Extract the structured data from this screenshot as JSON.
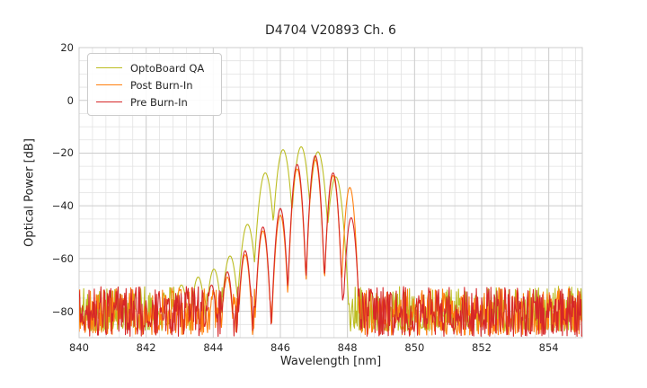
{
  "chart_data": {
    "type": "line",
    "title": "D4704 V20893 Ch. 6",
    "xlabel": "Wavelength [nm]",
    "ylabel": "Optical Power [dB]",
    "xlim": [
      840,
      855
    ],
    "ylim": [
      -90,
      20
    ],
    "x_major_ticks": [
      840,
      842,
      844,
      846,
      848,
      850,
      852,
      854
    ],
    "y_major_ticks": [
      20,
      0,
      -20,
      -40,
      -60,
      -80
    ],
    "x_minor_step_nm": 0.4,
    "y_minor_step_db": 5,
    "grid": {
      "enabled": true,
      "major_color": "#cccccc",
      "minor_color": "#e2e2e2",
      "spine_color": "#cccccc"
    },
    "legend": {
      "position": "upper left"
    },
    "series": [
      {
        "name": "OptoBoard QA",
        "color": "#bcbd22",
        "peak_sharpness_db_per_nm2": 330,
        "mode_peaks_nm_db": [
          [
            843.05,
            -70
          ],
          [
            843.55,
            -67
          ],
          [
            844.02,
            -64
          ],
          [
            844.5,
            -59
          ],
          [
            845.02,
            -47
          ],
          [
            845.55,
            -27.5
          ],
          [
            846.08,
            -18.7
          ],
          [
            846.62,
            -17.6
          ],
          [
            847.12,
            -19.5
          ],
          [
            847.65,
            -29
          ]
        ],
        "noise_floor_db": {
          "min": -87.5,
          "max": -70.5
        },
        "noise_skew": 1.5,
        "seed": 101
      },
      {
        "name": "Post Burn-In",
        "color": "#ff7f0e",
        "peak_sharpness_db_per_nm2": 620,
        "mode_peaks_nm_db": [
          [
            844.42,
            -67
          ],
          [
            844.95,
            -58.5
          ],
          [
            845.48,
            -49.5
          ],
          [
            846.0,
            -43.5
          ],
          [
            846.5,
            -26
          ],
          [
            847.04,
            -22.5
          ],
          [
            847.57,
            -28.5
          ],
          [
            848.07,
            -33
          ]
        ],
        "noise_floor_db": {
          "min": -89,
          "max": -71
        },
        "noise_skew": 1.3,
        "seed": 202
      },
      {
        "name": "Pre Burn-In",
        "color": "#d62728",
        "peak_sharpness_db_per_nm2": 620,
        "mode_peaks_nm_db": [
          [
            843.95,
            -70
          ],
          [
            844.42,
            -65
          ],
          [
            844.95,
            -57
          ],
          [
            845.48,
            -48
          ],
          [
            846.0,
            -41
          ],
          [
            846.5,
            -24.3
          ],
          [
            847.04,
            -21
          ],
          [
            847.57,
            -27.5
          ],
          [
            848.11,
            -44.5
          ]
        ],
        "noise_floor_db": {
          "min": -89.5,
          "max": -70.5
        },
        "noise_skew": 1.2,
        "seed": 303
      }
    ]
  }
}
